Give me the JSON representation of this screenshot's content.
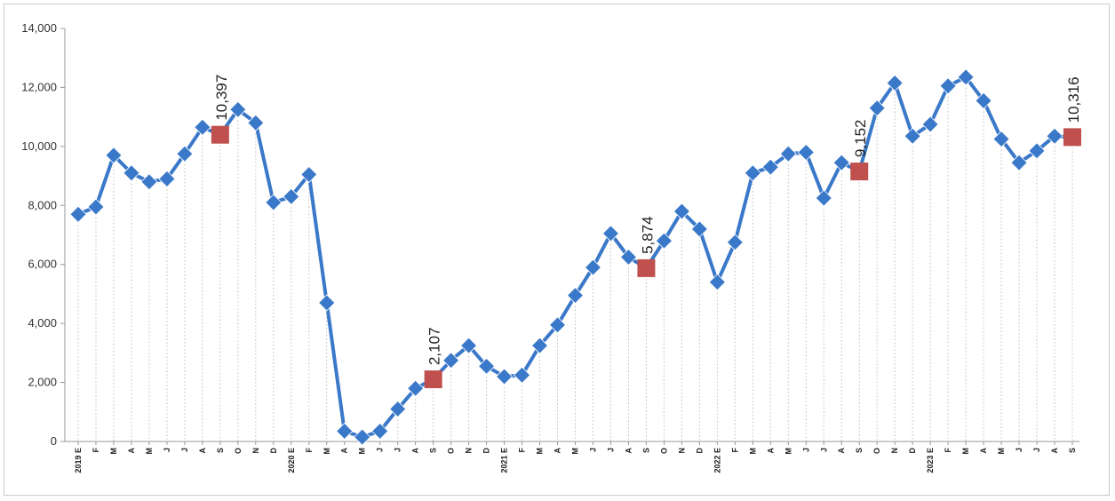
{
  "chart_data": {
    "type": "line",
    "title": "",
    "xlabel": "",
    "ylabel": "",
    "ylim": [
      0,
      14000
    ],
    "yticks": [
      "0",
      "2,000",
      "4,000",
      "6,000",
      "8,000",
      "10,000",
      "12,000",
      "14,000"
    ],
    "grid": "vertical dotted",
    "categories": [
      "2019 E",
      "F",
      "M",
      "A",
      "M",
      "J",
      "J",
      "A",
      "S",
      "O",
      "N",
      "D",
      "2020 E",
      "F",
      "M",
      "A",
      "M",
      "J",
      "J",
      "A",
      "S",
      "O",
      "N",
      "D",
      "2021 E",
      "F",
      "M",
      "A",
      "M",
      "J",
      "J",
      "A",
      "S",
      "O",
      "N",
      "D",
      "2022 E",
      "F",
      "M",
      "A",
      "M",
      "J",
      "J",
      "A",
      "S",
      "O",
      "N",
      "D",
      "2023 E",
      "F",
      "M",
      "A",
      "M",
      "J",
      "J",
      "A",
      "S"
    ],
    "series": [
      {
        "color": "#3a78c9",
        "values": [
          7700,
          7950,
          9700,
          9100,
          8800,
          8900,
          9750,
          10650,
          10397,
          11250,
          10800,
          8100,
          8300,
          9050,
          4700,
          350,
          150,
          350,
          1100,
          1800,
          2107,
          2750,
          3250,
          2550,
          2200,
          2250,
          3250,
          3950,
          4950,
          5900,
          7050,
          6250,
          5874,
          6800,
          7800,
          7200,
          5400,
          6750,
          9100,
          9300,
          9750,
          9800,
          8250,
          9450,
          9152,
          11300,
          12150,
          10350,
          10750,
          12050,
          12350,
          11550,
          10250,
          9450,
          9850,
          10350,
          10316
        ]
      }
    ],
    "highlight_indices": [
      8,
      20,
      32,
      44,
      56
    ],
    "data_labels": [
      "10,397",
      "2,107",
      "5,874",
      "9,152",
      "10,316"
    ],
    "colors": {
      "line": "#3a78c9",
      "highlight": "#c0504d",
      "grid": "#bdbdbd",
      "axis": "#999999"
    }
  }
}
